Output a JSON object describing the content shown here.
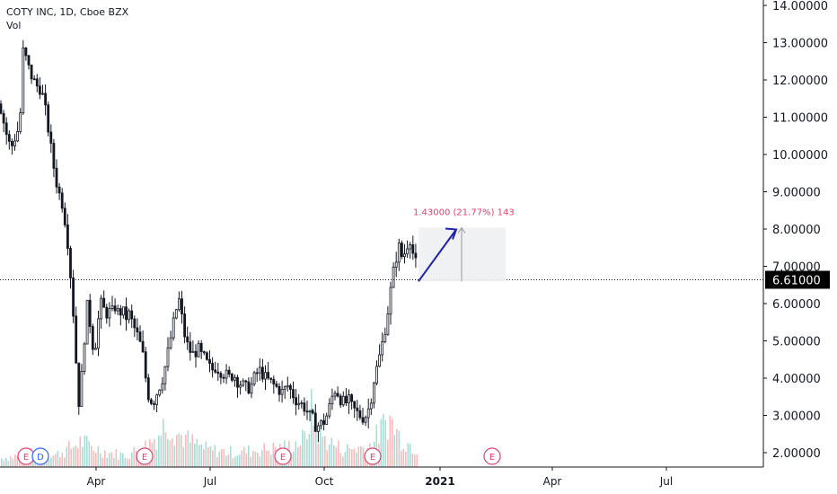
{
  "header": {
    "title": "COTY INC, 1D, Cboe BZX",
    "indicator": "Vol"
  },
  "chart_data": {
    "type": "candlestick",
    "ylim": [
      1.7,
      14.1
    ],
    "y_ticks": [
      "14.00000",
      "13.00000",
      "12.00000",
      "11.00000",
      "10.00000",
      "9.00000",
      "8.00000",
      "7.00000",
      "6.00000",
      "5.00000",
      "4.00000",
      "3.00000",
      "2.00000"
    ],
    "x_ticks": [
      {
        "label": "Apr",
        "bold": false
      },
      {
        "label": "Jul",
        "bold": false
      },
      {
        "label": "Oct",
        "bold": false
      },
      {
        "label": "2021",
        "bold": true
      },
      {
        "label": "Apr",
        "bold": false
      },
      {
        "label": "Jul",
        "bold": false
      }
    ],
    "last_price": "6.61000",
    "last_price_value": 6.61,
    "measure": {
      "label": "1.43000 (21.77%) 143",
      "from": 6.57,
      "to": 8.0
    },
    "event_markers": [
      {
        "label": "E",
        "type": "earnings"
      },
      {
        "label": "D",
        "type": "dividend"
      },
      {
        "label": "E",
        "type": "earnings"
      },
      {
        "label": "E",
        "type": "earnings"
      },
      {
        "label": "E",
        "type": "earnings"
      },
      {
        "label": "E",
        "type": "earnings"
      }
    ],
    "price_path": [
      [
        0,
        11.3
      ],
      [
        6,
        10.6
      ],
      [
        12,
        10.1
      ],
      [
        18,
        10.5
      ],
      [
        22,
        10.7
      ],
      [
        26,
        12.8
      ],
      [
        30,
        12.4
      ],
      [
        34,
        12.1
      ],
      [
        40,
        11.8
      ],
      [
        46,
        11.7
      ],
      [
        50,
        11.2
      ],
      [
        54,
        10.6
      ],
      [
        58,
        9.9
      ],
      [
        62,
        9.3
      ],
      [
        66,
        8.9
      ],
      [
        70,
        8.6
      ],
      [
        73,
        8.1
      ],
      [
        76,
        7.5
      ],
      [
        79,
        6.6
      ],
      [
        82,
        5.6
      ],
      [
        85,
        4.3
      ],
      [
        87,
        3.2
      ],
      [
        90,
        3.8
      ],
      [
        93,
        4.6
      ],
      [
        96,
        6.0
      ],
      [
        99,
        5.7
      ],
      [
        102,
        5.1
      ],
      [
        105,
        4.6
      ],
      [
        108,
        5.3
      ],
      [
        111,
        5.8
      ],
      [
        114,
        6.1
      ],
      [
        117,
        5.6
      ],
      [
        120,
        5.8
      ],
      [
        124,
        5.7
      ],
      [
        128,
        5.9
      ],
      [
        132,
        5.7
      ],
      [
        136,
        5.8
      ],
      [
        140,
        5.6
      ],
      [
        144,
        5.7
      ],
      [
        148,
        5.4
      ],
      [
        152,
        5.2
      ],
      [
        156,
        4.9
      ],
      [
        160,
        4.5
      ],
      [
        164,
        3.6
      ],
      [
        168,
        3.4
      ],
      [
        172,
        3.4
      ],
      [
        176,
        3.7
      ],
      [
        180,
        3.9
      ],
      [
        184,
        4.3
      ],
      [
        188,
        4.8
      ],
      [
        192,
        5.3
      ],
      [
        196,
        5.8
      ],
      [
        200,
        6.1
      ],
      [
        204,
        5.3
      ],
      [
        208,
        4.9
      ],
      [
        212,
        4.7
      ],
      [
        216,
        4.6
      ],
      [
        220,
        4.8
      ],
      [
        224,
        4.6
      ],
      [
        228,
        4.5
      ],
      [
        232,
        4.3
      ],
      [
        236,
        4.2
      ],
      [
        240,
        4.3
      ],
      [
        245,
        4.2
      ],
      [
        250,
        4.1
      ],
      [
        255,
        4.0
      ],
      [
        260,
        4.1
      ],
      [
        265,
        3.9
      ],
      [
        270,
        3.8
      ],
      [
        275,
        3.7
      ],
      [
        280,
        3.8
      ],
      [
        285,
        4.1
      ],
      [
        290,
        4.2
      ],
      [
        295,
        4.0
      ],
      [
        300,
        3.9
      ],
      [
        305,
        3.8
      ],
      [
        310,
        3.7
      ],
      [
        315,
        3.6
      ],
      [
        320,
        3.8
      ],
      [
        325,
        3.6
      ],
      [
        330,
        3.4
      ],
      [
        335,
        3.3
      ],
      [
        340,
        3.2
      ],
      [
        344,
        3.0
      ],
      [
        348,
        2.9
      ],
      [
        352,
        2.7
      ],
      [
        356,
        2.75
      ],
      [
        360,
        2.8
      ],
      [
        364,
        3.0
      ],
      [
        368,
        3.3
      ],
      [
        372,
        3.7
      ],
      [
        376,
        3.6
      ],
      [
        380,
        3.4
      ],
      [
        384,
        3.3
      ],
      [
        388,
        3.4
      ],
      [
        392,
        3.2
      ],
      [
        396,
        3.1
      ],
      [
        400,
        3.0
      ],
      [
        404,
        2.95
      ],
      [
        408,
        3.0
      ],
      [
        412,
        3.3
      ],
      [
        416,
        3.9
      ],
      [
        420,
        4.3
      ],
      [
        424,
        4.7
      ],
      [
        428,
        5.2
      ],
      [
        432,
        5.8
      ],
      [
        436,
        6.5
      ],
      [
        440,
        7.1
      ],
      [
        444,
        7.5
      ],
      [
        448,
        7.2
      ],
      [
        452,
        7.4
      ],
      [
        456,
        7.8
      ],
      [
        460,
        7.3
      ],
      [
        464,
        6.95
      ]
    ],
    "volume_path": [
      [
        0,
        0.15
      ],
      [
        20,
        0.2
      ],
      [
        40,
        0.25
      ],
      [
        60,
        0.2
      ],
      [
        80,
        0.35
      ],
      [
        90,
        0.45
      ],
      [
        100,
        0.35
      ],
      [
        120,
        0.25
      ],
      [
        140,
        0.2
      ],
      [
        160,
        0.35
      ],
      [
        175,
        0.55
      ],
      [
        185,
        0.8
      ],
      [
        195,
        0.6
      ],
      [
        210,
        0.45
      ],
      [
        230,
        0.3
      ],
      [
        260,
        0.25
      ],
      [
        290,
        0.3
      ],
      [
        320,
        0.35
      ],
      [
        340,
        0.5
      ],
      [
        345,
        1.0
      ],
      [
        355,
        0.55
      ],
      [
        380,
        0.3
      ],
      [
        410,
        0.35
      ],
      [
        420,
        0.55
      ],
      [
        432,
        0.85
      ],
      [
        445,
        0.5
      ],
      [
        465,
        0.3
      ]
    ]
  }
}
